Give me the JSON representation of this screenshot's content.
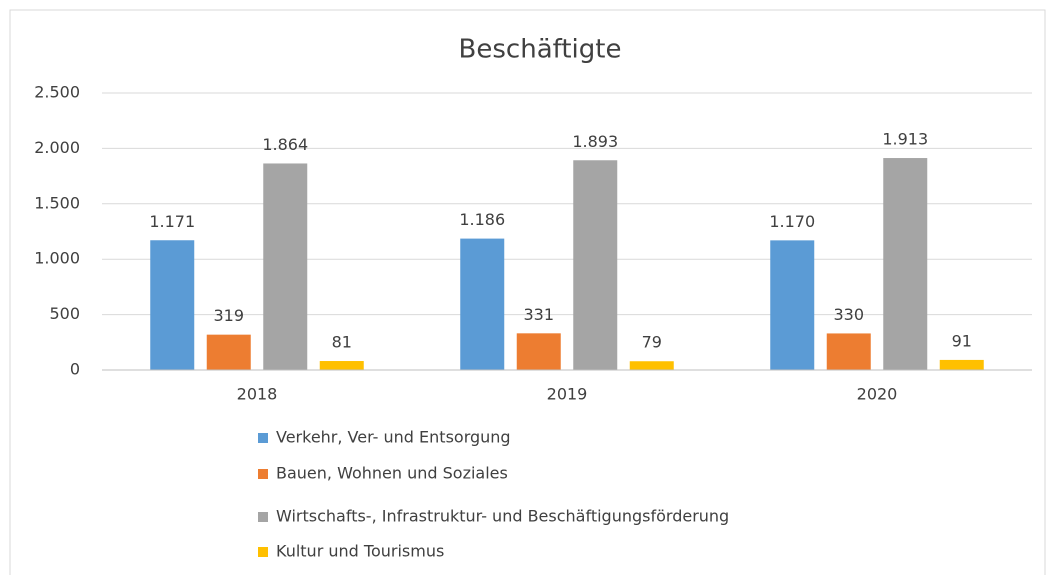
{
  "chart_data": {
    "type": "bar",
    "title": "Beschäftigte",
    "categories": [
      "2018",
      "2019",
      "2020"
    ],
    "series": [
      {
        "name": "Verkehr, Ver- und Entsorgung",
        "color": "#5b9bd5",
        "values": [
          1171,
          1186,
          1170
        ],
        "value_labels": [
          "1.171",
          "1.186",
          "1.170"
        ]
      },
      {
        "name": "Bauen, Wohnen und Soziales",
        "color": "#ed7d31",
        "values": [
          319,
          331,
          330
        ]
      },
      {
        "name": "Wirtschafts-, Infrastruktur- und Beschäftigungsförderung",
        "color": "#a5a5a5",
        "values": [
          1864,
          1893,
          1913
        ],
        "value_labels": [
          "1.864",
          "1.893",
          "1.913"
        ]
      },
      {
        "name": "Kultur und Tourismus",
        "color": "#ffc000",
        "values": [
          81,
          79,
          91
        ]
      }
    ],
    "ylim": [
      0,
      2500
    ],
    "yticks": [
      0,
      500,
      {
        "value": 1000,
        "label": "1.000"
      },
      {
        "value": 1500,
        "label": "1.500"
      },
      {
        "value": 2000,
        "label": "2.000"
      },
      {
        "value": 2500,
        "label": "2.500"
      }
    ],
    "grid": true,
    "legend": "bottom"
  }
}
